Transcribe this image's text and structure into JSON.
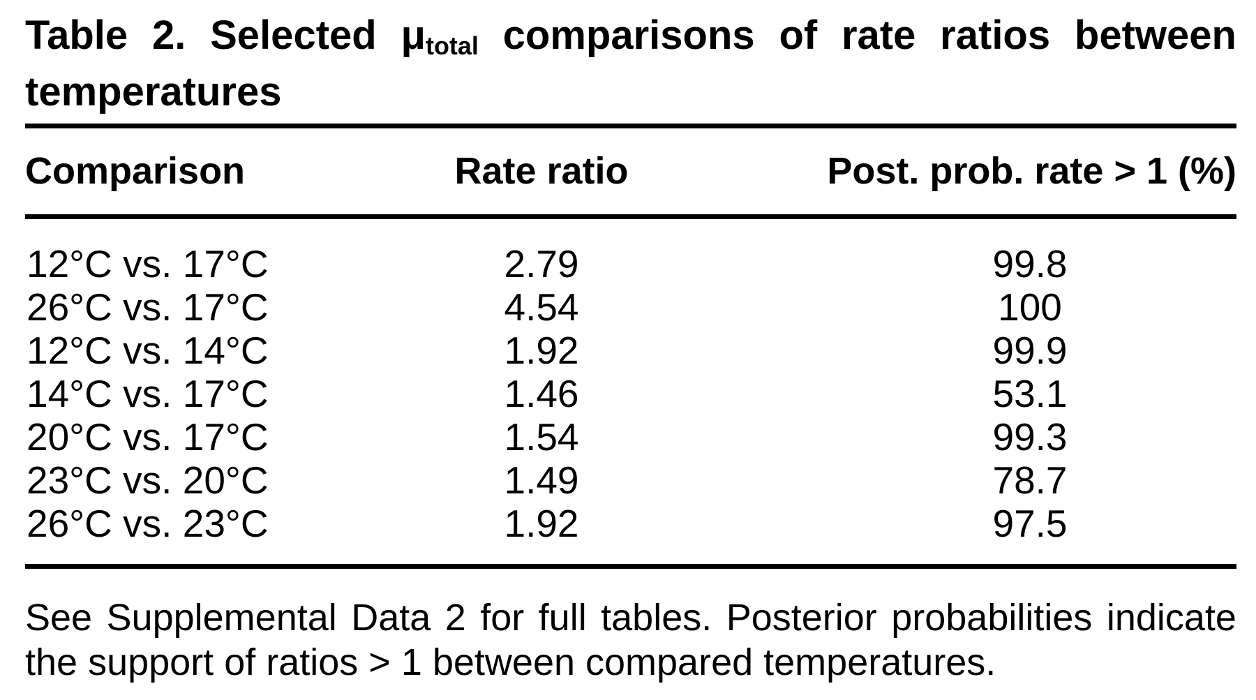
{
  "title": {
    "line1_words": [
      {
        "t": "Table"
      },
      {
        "t": "2."
      },
      {
        "t": "Selected"
      },
      {
        "t": "μ",
        "sub": "total"
      },
      {
        "t": "comparisons"
      },
      {
        "t": "of"
      },
      {
        "t": "rate"
      },
      {
        "t": "ratios"
      },
      {
        "t": "between"
      }
    ],
    "line2": "temperatures",
    "full_title": "Table 2. Selected μtotal comparisons of rate ratios between temperatures"
  },
  "headers": {
    "comparison": "Comparison",
    "rate_ratio": "Rate ratio",
    "post_prob": "Post. prob. rate > 1 (%)"
  },
  "rows": [
    {
      "comparison": "12°C vs. 17°C",
      "rate_ratio": "2.79",
      "post_prob": "99.8"
    },
    {
      "comparison": "26°C vs. 17°C",
      "rate_ratio": "4.54",
      "post_prob": "100"
    },
    {
      "comparison": "12°C vs. 14°C",
      "rate_ratio": "1.92",
      "post_prob": "99.9"
    },
    {
      "comparison": "14°C vs. 17°C",
      "rate_ratio": "1.46",
      "post_prob": "53.1"
    },
    {
      "comparison": "20°C vs. 17°C",
      "rate_ratio": "1.54",
      "post_prob": "99.3"
    },
    {
      "comparison": "23°C vs. 20°C",
      "rate_ratio": "1.49",
      "post_prob": "78.7"
    },
    {
      "comparison": "26°C vs. 23°C",
      "rate_ratio": "1.92",
      "post_prob": "97.5"
    }
  ],
  "footnote": {
    "line1_words": [
      {
        "t": "See"
      },
      {
        "t": "Supplemental"
      },
      {
        "t": "Data"
      },
      {
        "t": "2"
      },
      {
        "t": "for"
      },
      {
        "t": "full"
      },
      {
        "t": "tables."
      },
      {
        "t": "Posterior"
      },
      {
        "t": "probabilities"
      },
      {
        "t": "indicate"
      }
    ],
    "line2": "the support of ratios > 1 between compared temperatures."
  },
  "colors": {
    "text": "#000000",
    "background": "#ffffff",
    "rule": "#000000"
  }
}
